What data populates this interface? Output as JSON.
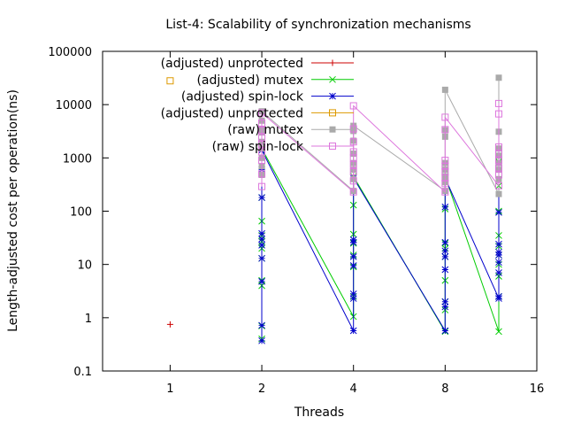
{
  "chart_data": {
    "type": "line",
    "title": "List-4: Scalability of synchronization mechanisms",
    "xlabel": "Threads",
    "ylabel": "Length-adjusted cost per operation(ns)",
    "x_scale": "log2",
    "y_scale": "log10",
    "xlim": [
      0.6,
      16
    ],
    "ylim": [
      0.1,
      100000
    ],
    "x_ticks": [
      1,
      2,
      4,
      8,
      16
    ],
    "x_tick_labels": [
      "1",
      "2",
      "4",
      "8",
      "16"
    ],
    "y_ticks": [
      0.1,
      1,
      10,
      100,
      1000,
      10000,
      100000
    ],
    "y_tick_labels": [
      "0.1",
      "1",
      "10",
      "100",
      "1000",
      "10000",
      "100000"
    ],
    "legend_position": "top-left",
    "grid": false,
    "series": [
      {
        "name": "(adjusted) unprotected",
        "color": "#cc0000",
        "marker": "plus",
        "connect": false,
        "points": [
          [
            1,
            0.75
          ]
        ]
      },
      {
        "name": "(adjusted) mutex",
        "color": "#00cc00",
        "marker": "cross",
        "connect": true,
        "points": [
          [
            2,
            0.4
          ],
          [
            2,
            0.7
          ],
          [
            2,
            4
          ],
          [
            2,
            5
          ],
          [
            2,
            13
          ],
          [
            2,
            20
          ],
          [
            2,
            27
          ],
          [
            2,
            35
          ],
          [
            2,
            65
          ],
          [
            2,
            180
          ],
          [
            2,
            700
          ],
          [
            2,
            1500
          ],
          [
            4,
            1.05
          ],
          [
            4,
            2.5
          ],
          [
            4,
            9
          ],
          [
            4,
            15
          ],
          [
            4,
            25
          ],
          [
            4,
            37
          ],
          [
            4,
            130
          ],
          [
            4,
            450
          ],
          [
            8,
            0.55
          ],
          [
            8,
            1.4
          ],
          [
            8,
            2
          ],
          [
            8,
            5
          ],
          [
            8,
            14
          ],
          [
            8,
            20
          ],
          [
            8,
            25
          ],
          [
            8,
            110
          ],
          [
            8,
            450
          ],
          [
            12,
            0.55
          ],
          [
            12,
            2.5
          ],
          [
            12,
            6
          ],
          [
            12,
            10
          ],
          [
            12,
            15
          ],
          [
            12,
            22
          ],
          [
            12,
            35
          ],
          [
            12,
            100
          ],
          [
            12,
            300
          ],
          [
            12,
            850
          ]
        ]
      },
      {
        "name": "(adjusted) spin-lock",
        "color": "#0000cc",
        "marker": "star",
        "connect": true,
        "points": [
          [
            2,
            0.37
          ],
          [
            2,
            0.72
          ],
          [
            2,
            4.8
          ],
          [
            2,
            13
          ],
          [
            2,
            23
          ],
          [
            2,
            30
          ],
          [
            2,
            38
          ],
          [
            2,
            180
          ],
          [
            2,
            600
          ],
          [
            2,
            1400
          ],
          [
            4,
            0.57
          ],
          [
            4,
            2.3
          ],
          [
            4,
            2.8
          ],
          [
            4,
            9.5
          ],
          [
            4,
            14
          ],
          [
            4,
            26
          ],
          [
            4,
            29
          ],
          [
            4,
            420
          ],
          [
            8,
            0.57
          ],
          [
            8,
            1.6
          ],
          [
            8,
            2
          ],
          [
            8,
            8
          ],
          [
            8,
            14
          ],
          [
            8,
            18
          ],
          [
            8,
            26
          ],
          [
            8,
            120
          ],
          [
            8,
            420
          ],
          [
            12,
            2.3
          ],
          [
            12,
            2.5
          ],
          [
            12,
            7
          ],
          [
            12,
            11
          ],
          [
            12,
            15
          ],
          [
            12,
            17
          ],
          [
            12,
            24
          ],
          [
            12,
            95
          ],
          [
            12,
            800
          ]
        ]
      },
      {
        "name": "(adjusted) unprotected",
        "color": "#dd9900",
        "marker": "square",
        "connect": false,
        "points": [
          [
            1,
            28000
          ]
        ]
      },
      {
        "name": "(raw) mutex",
        "color": "#aaaaaa",
        "marker": "filled-square",
        "connect": true,
        "points": [
          [
            2,
            480
          ],
          [
            2,
            700
          ],
          [
            2,
            1000
          ],
          [
            2,
            1500
          ],
          [
            2,
            2000
          ],
          [
            2,
            3000
          ],
          [
            2,
            3500
          ],
          [
            2,
            5000
          ],
          [
            2,
            7500
          ],
          [
            4,
            240
          ],
          [
            4,
            400
          ],
          [
            4,
            600
          ],
          [
            4,
            800
          ],
          [
            4,
            1200
          ],
          [
            4,
            2100
          ],
          [
            4,
            3200
          ],
          [
            4,
            4000
          ],
          [
            8,
            240
          ],
          [
            8,
            350
          ],
          [
            8,
            450
          ],
          [
            8,
            600
          ],
          [
            8,
            800
          ],
          [
            8,
            2500
          ],
          [
            8,
            3300
          ],
          [
            8,
            19000
          ],
          [
            12,
            210
          ],
          [
            12,
            400
          ],
          [
            12,
            600
          ],
          [
            12,
            800
          ],
          [
            12,
            1100
          ],
          [
            12,
            1500
          ],
          [
            12,
            3100
          ],
          [
            12,
            32000
          ]
        ]
      },
      {
        "name": "(raw) spin-lock",
        "color": "#dd77dd",
        "marker": "square",
        "connect": true,
        "points": [
          [
            2,
            290
          ],
          [
            2,
            500
          ],
          [
            2,
            900
          ],
          [
            2,
            1300
          ],
          [
            2,
            1800
          ],
          [
            2,
            2400
          ],
          [
            2,
            3300
          ],
          [
            2,
            4500
          ],
          [
            2,
            7000
          ],
          [
            4,
            230
          ],
          [
            4,
            370
          ],
          [
            4,
            550
          ],
          [
            4,
            750
          ],
          [
            4,
            1000
          ],
          [
            4,
            1300
          ],
          [
            4,
            2000
          ],
          [
            4,
            3500
          ],
          [
            4,
            9500
          ],
          [
            8,
            230
          ],
          [
            8,
            330
          ],
          [
            8,
            420
          ],
          [
            8,
            550
          ],
          [
            8,
            700
          ],
          [
            8,
            900
          ],
          [
            8,
            3400
          ],
          [
            8,
            5800
          ],
          [
            12,
            300
          ],
          [
            12,
            480
          ],
          [
            12,
            650
          ],
          [
            12,
            900
          ],
          [
            12,
            1200
          ],
          [
            12,
            1600
          ],
          [
            12,
            6700
          ],
          [
            12,
            10500
          ]
        ]
      }
    ]
  }
}
